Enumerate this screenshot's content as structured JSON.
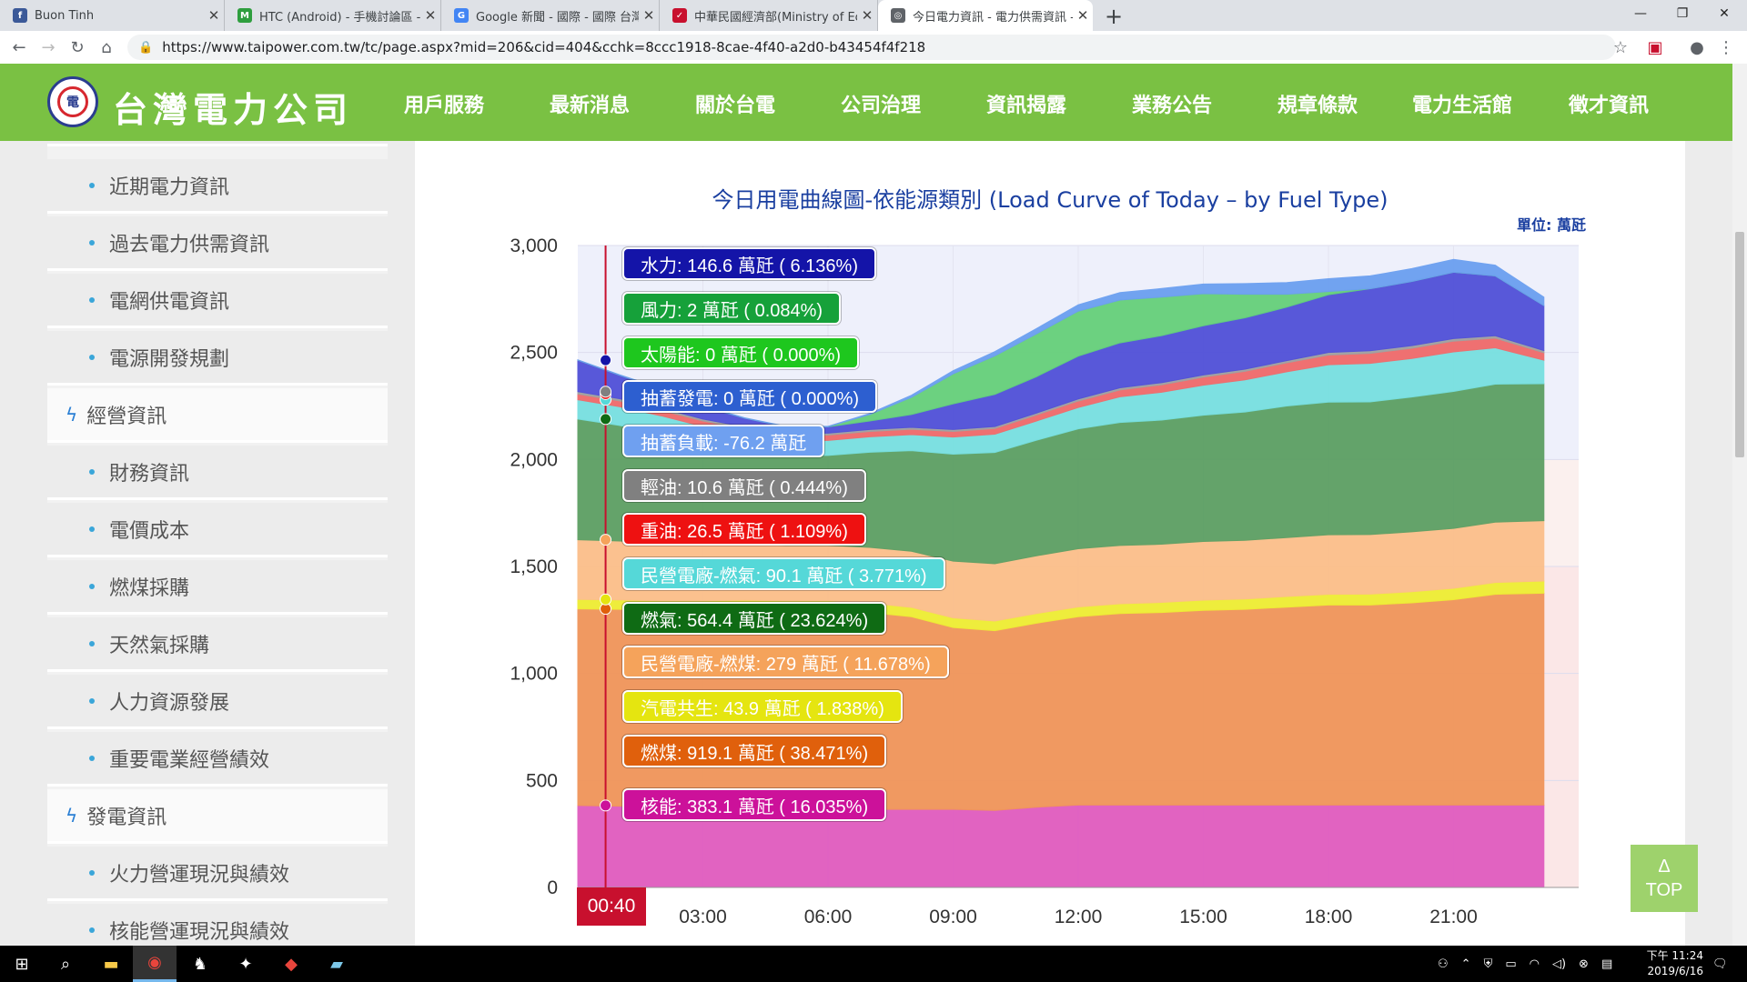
{
  "browser": {
    "tabs": [
      {
        "title": "Buon Tinh",
        "favicon": "facebook-icon",
        "color": "#3b5998",
        "glyph": "f"
      },
      {
        "title": "HTC (Android) - 手機討論區 - M",
        "favicon": "forum-icon",
        "color": "#2e9e3e",
        "glyph": "M"
      },
      {
        "title": "Google 新聞 - 國際 - 國際 台灣",
        "favicon": "google-news-icon",
        "color": "#4285f4",
        "glyph": "G"
      },
      {
        "title": "中華民國經濟部(Ministry of Eco",
        "favicon": "moea-icon",
        "color": "#c8102e",
        "glyph": "✓"
      },
      {
        "title": "今日電力資訊 - 電力供需資訊 - 台",
        "favicon": "globe-icon",
        "color": "#5f6368",
        "glyph": "◎"
      }
    ],
    "url": "https://www.taipower.com.tw/tc/page.aspx?mid=206&cid=404&cchk=8ccc1918-8cae-4f40-a2d0-b43454f4f218"
  },
  "site": {
    "logo_text": "台灣電力公司",
    "logo_mark": "電",
    "menu": [
      "用戶服務",
      "最新消息",
      "關於台電",
      "公司治理",
      "資訊揭露",
      "業務公告",
      "規章條款",
      "電力生活館",
      "徵才資訊"
    ],
    "active_menu": "資訊揭露"
  },
  "sidebar": {
    "sub_items_top": [
      "近期電力資訊",
      "過去電力供需資訊",
      "電網供電資訊",
      "電源開發規劃"
    ],
    "section_1": "經營資訊",
    "sub_items_mid": [
      "財務資訊",
      "電價成本",
      "燃煤採購",
      "天然氣採購",
      "人力資源發展",
      "重要電業經營績效"
    ],
    "section_2": "發電資訊",
    "sub_items_bottom": [
      "火力營運現況與績效",
      "核能營運現況與績效"
    ]
  },
  "chart": {
    "title": "今日用電曲線圖-依能源類別 (Load Curve of Today – by Fuel Type)",
    "unit": "單位: 萬瓩",
    "cursor_time": "00:40",
    "top_button": {
      "arrow": "Δ",
      "label": "TOP"
    },
    "tooltips": [
      {
        "text": "水力: 146.6 萬瓩 ( 6.136%)",
        "color": "#1414a8"
      },
      {
        "text": "風力: 2 萬瓩 ( 0.084%)",
        "color": "#16a13a"
      },
      {
        "text": "太陽能: 0 萬瓩 ( 0.000%)",
        "color": "#1ec71e"
      },
      {
        "text": "抽蓄發電: 0 萬瓩 ( 0.000%)",
        "color": "#2d5fd0"
      },
      {
        "text": "抽蓄負載: -76.2 萬瓩",
        "color": "#6fa0f0"
      },
      {
        "text": "輕油: 10.6 萬瓩 ( 0.444%)",
        "color": "#808080"
      },
      {
        "text": "重油: 26.5 萬瓩 ( 1.109%)",
        "color": "#ee1111"
      },
      {
        "text": "民營電廠-燃氣: 90.1 萬瓩 ( 3.771%)",
        "color": "#55d8d8"
      },
      {
        "text": "燃氣: 564.4 萬瓩 ( 23.624%)",
        "color": "#0f6b14"
      },
      {
        "text": "民營電廠-燃煤: 279 萬瓩 ( 11.678%)",
        "color": "#f5a35b"
      },
      {
        "text": "汽電共生: 43.9 萬瓩 ( 1.838%)",
        "color": "#e5e510"
      },
      {
        "text": "燃煤: 919.1 萬瓩 ( 38.471%)",
        "color": "#e0600c"
      },
      {
        "text": "核能: 383.1 萬瓩 ( 16.035%)",
        "color": "#cc119a"
      }
    ]
  },
  "chart_data": {
    "type": "area",
    "stacked": true,
    "x": [
      "00:00",
      "01:00",
      "02:00",
      "03:00",
      "04:00",
      "05:00",
      "06:00",
      "07:00",
      "08:00",
      "09:00",
      "10:00",
      "11:00",
      "12:00",
      "13:00",
      "14:00",
      "15:00",
      "16:00",
      "17:00",
      "18:00",
      "19:00",
      "20:00",
      "21:00",
      "22:00",
      "23:10"
    ],
    "x_ticks": [
      "03:00",
      "06:00",
      "09:00",
      "12:00",
      "15:00",
      "18:00",
      "21:00"
    ],
    "ylim": [
      0,
      3000
    ],
    "y_ticks": [
      "0",
      "500",
      "1,000",
      "1,500",
      "2,000",
      "2,500",
      "3,000"
    ],
    "series": [
      {
        "name": "核能",
        "color": "#e05cc0",
        "values": [
          383,
          380,
          375,
          370,
          368,
          365,
          365,
          365,
          365,
          365,
          360,
          375,
          385,
          385,
          385,
          385,
          385,
          385,
          385,
          385,
          385,
          385,
          385,
          385
        ]
      },
      {
        "name": "燃煤",
        "color": "#f0955a",
        "values": [
          919,
          920,
          920,
          925,
          930,
          930,
          930,
          920,
          900,
          850,
          840,
          860,
          880,
          895,
          900,
          910,
          915,
          925,
          935,
          935,
          945,
          960,
          985,
          990
        ]
      },
      {
        "name": "汽電共生",
        "color": "#eeee33",
        "values": [
          44,
          44,
          44,
          44,
          44,
          44,
          44,
          44,
          44,
          45,
          45,
          45,
          46,
          46,
          47,
          48,
          48,
          50,
          50,
          51,
          52,
          53,
          55,
          57
        ]
      },
      {
        "name": "民營電廠-燃煤",
        "color": "#fcbf8a",
        "values": [
          279,
          275,
          270,
          265,
          262,
          260,
          260,
          260,
          262,
          265,
          268,
          270,
          272,
          272,
          272,
          274,
          274,
          275,
          278,
          278,
          280,
          280,
          282,
          282
        ]
      },
      {
        "name": "燃氣",
        "color": "#5c9f63",
        "values": [
          564,
          540,
          510,
          470,
          440,
          420,
          420,
          445,
          470,
          500,
          520,
          540,
          560,
          575,
          580,
          590,
          600,
          615,
          620,
          620,
          630,
          640,
          645,
          640
        ]
      },
      {
        "name": "民營電廠-燃氣",
        "color": "#77e0e0",
        "values": [
          90,
          88,
          85,
          80,
          75,
          70,
          70,
          72,
          75,
          80,
          85,
          90,
          100,
          120,
          130,
          140,
          150,
          160,
          175,
          180,
          180,
          185,
          170,
          110
        ]
      },
      {
        "name": "重油",
        "color": "#f06a6a",
        "values": [
          27,
          27,
          26,
          26,
          25,
          25,
          25,
          25,
          25,
          26,
          27,
          28,
          30,
          32,
          35,
          38,
          40,
          42,
          45,
          47,
          48,
          50,
          45,
          35
        ]
      },
      {
        "name": "輕油",
        "color": "#a0a0a0",
        "values": [
          11,
          10,
          10,
          9,
          9,
          9,
          9,
          9,
          9,
          9,
          9,
          9,
          10,
          10,
          10,
          10,
          10,
          10,
          12,
          12,
          12,
          12,
          11,
          10
        ]
      },
      {
        "name": "水力",
        "color": "#5050d8",
        "values": [
          147,
          110,
          90,
          60,
          40,
          30,
          30,
          40,
          60,
          120,
          150,
          170,
          200,
          210,
          220,
          230,
          240,
          250,
          270,
          290,
          300,
          310,
          280,
          210
        ]
      },
      {
        "name": "抽蓄發電",
        "color": "#3a6fdf",
        "values": [
          0,
          0,
          0,
          0,
          0,
          0,
          0,
          0,
          0,
          0,
          0,
          0,
          0,
          0,
          0,
          0,
          0,
          0,
          0,
          0,
          0,
          0,
          0,
          0
        ]
      },
      {
        "name": "太陽能",
        "color": "#66d07a",
        "values": [
          0,
          0,
          0,
          0,
          0,
          0,
          0,
          30,
          80,
          140,
          180,
          200,
          210,
          200,
          180,
          150,
          110,
          60,
          15,
          0,
          0,
          0,
          0,
          0
        ]
      },
      {
        "name": "風力",
        "color": "#6b9ff0",
        "values": [
          2,
          2,
          2,
          2,
          2,
          2,
          2,
          5,
          10,
          15,
          20,
          25,
          30,
          35,
          40,
          45,
          50,
          55,
          60,
          60,
          60,
          60,
          50,
          40
        ]
      }
    ],
    "pump_load": {
      "name": "抽蓄負載",
      "value_at_cursor": -76.2
    }
  }
}
